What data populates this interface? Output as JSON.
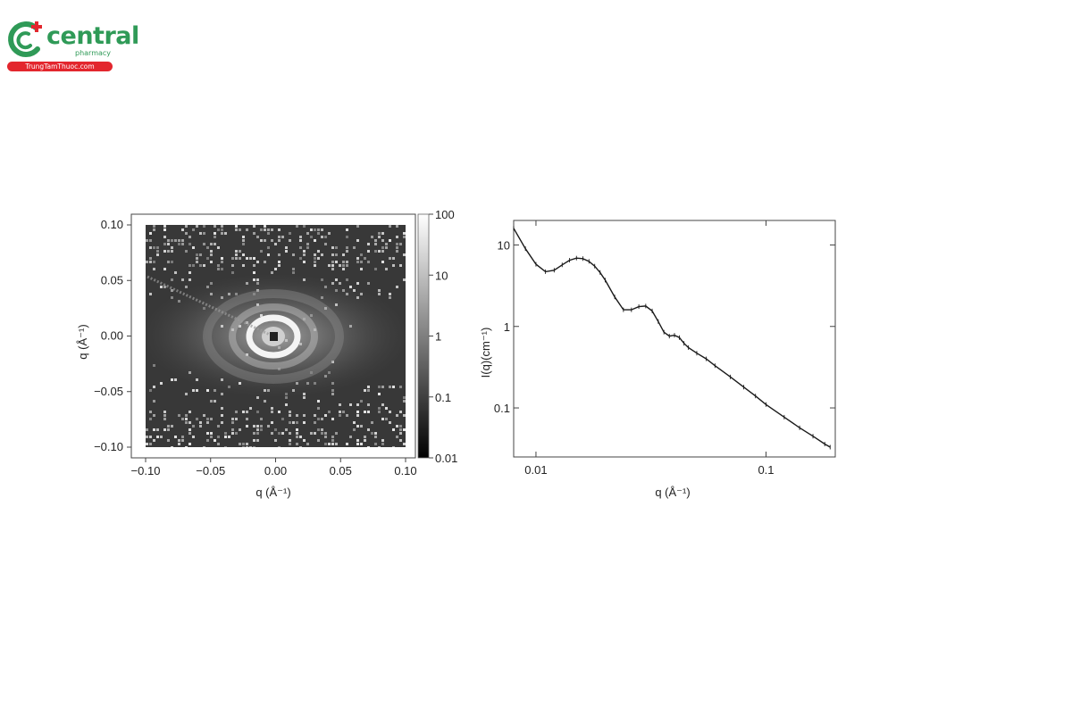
{
  "logo": {
    "name": "central",
    "tagline": "pharmacy",
    "site": "TrungTamThuoc.com",
    "colors": {
      "brand_green": "#2f9a57",
      "brand_red": "#e3262d"
    }
  },
  "chart_data": [
    {
      "type": "heatmap",
      "xlabel": "q (Å⁻¹)",
      "ylabel": "q (Å⁻¹)",
      "xlim": [
        -0.1,
        0.1
      ],
      "ylim": [
        -0.1,
        0.1
      ],
      "x_ticks": [
        "−0.10",
        "−0.05",
        "0.00",
        "0.05",
        "0.10"
      ],
      "y_ticks": [
        "0.10",
        "0.05",
        "0.00",
        "−0.05",
        "−0.10"
      ],
      "colorbar": {
        "scale": "log",
        "range": [
          0.01,
          100
        ],
        "ticks": [
          "100",
          "10",
          "1",
          "0.1",
          "0.01"
        ],
        "colormap": "grayscale"
      },
      "description_values": {
        "beam_center": [
          0.0,
          0.0
        ],
        "ring_q": [
          0.015,
          0.03,
          0.045
        ]
      }
    },
    {
      "type": "line",
      "xlabel": "q (Å⁻¹)",
      "ylabel": "I(q)(cm⁻¹)",
      "xscale": "log",
      "yscale": "log",
      "xlim": [
        0.008,
        0.2
      ],
      "ylim": [
        0.025,
        20
      ],
      "x_ticks": [
        "0.01",
        "0.1"
      ],
      "y_ticks": [
        "10",
        "1",
        "0.1"
      ],
      "x": [
        0.008,
        0.009,
        0.01,
        0.011,
        0.012,
        0.013,
        0.014,
        0.015,
        0.016,
        0.017,
        0.018,
        0.019,
        0.02,
        0.022,
        0.024,
        0.026,
        0.028,
        0.03,
        0.032,
        0.034,
        0.036,
        0.038,
        0.04,
        0.042,
        0.044,
        0.046,
        0.05,
        0.055,
        0.06,
        0.07,
        0.08,
        0.09,
        0.1,
        0.12,
        0.14,
        0.16,
        0.18,
        0.19
      ],
      "y": [
        16,
        9.0,
        5.8,
        4.7,
        4.9,
        5.7,
        6.5,
        6.9,
        6.8,
        6.3,
        5.5,
        4.6,
        3.7,
        2.3,
        1.6,
        1.6,
        1.75,
        1.78,
        1.55,
        1.15,
        0.85,
        0.76,
        0.78,
        0.73,
        0.62,
        0.55,
        0.47,
        0.4,
        0.33,
        0.24,
        0.18,
        0.14,
        0.11,
        0.077,
        0.057,
        0.045,
        0.036,
        0.033
      ]
    }
  ]
}
